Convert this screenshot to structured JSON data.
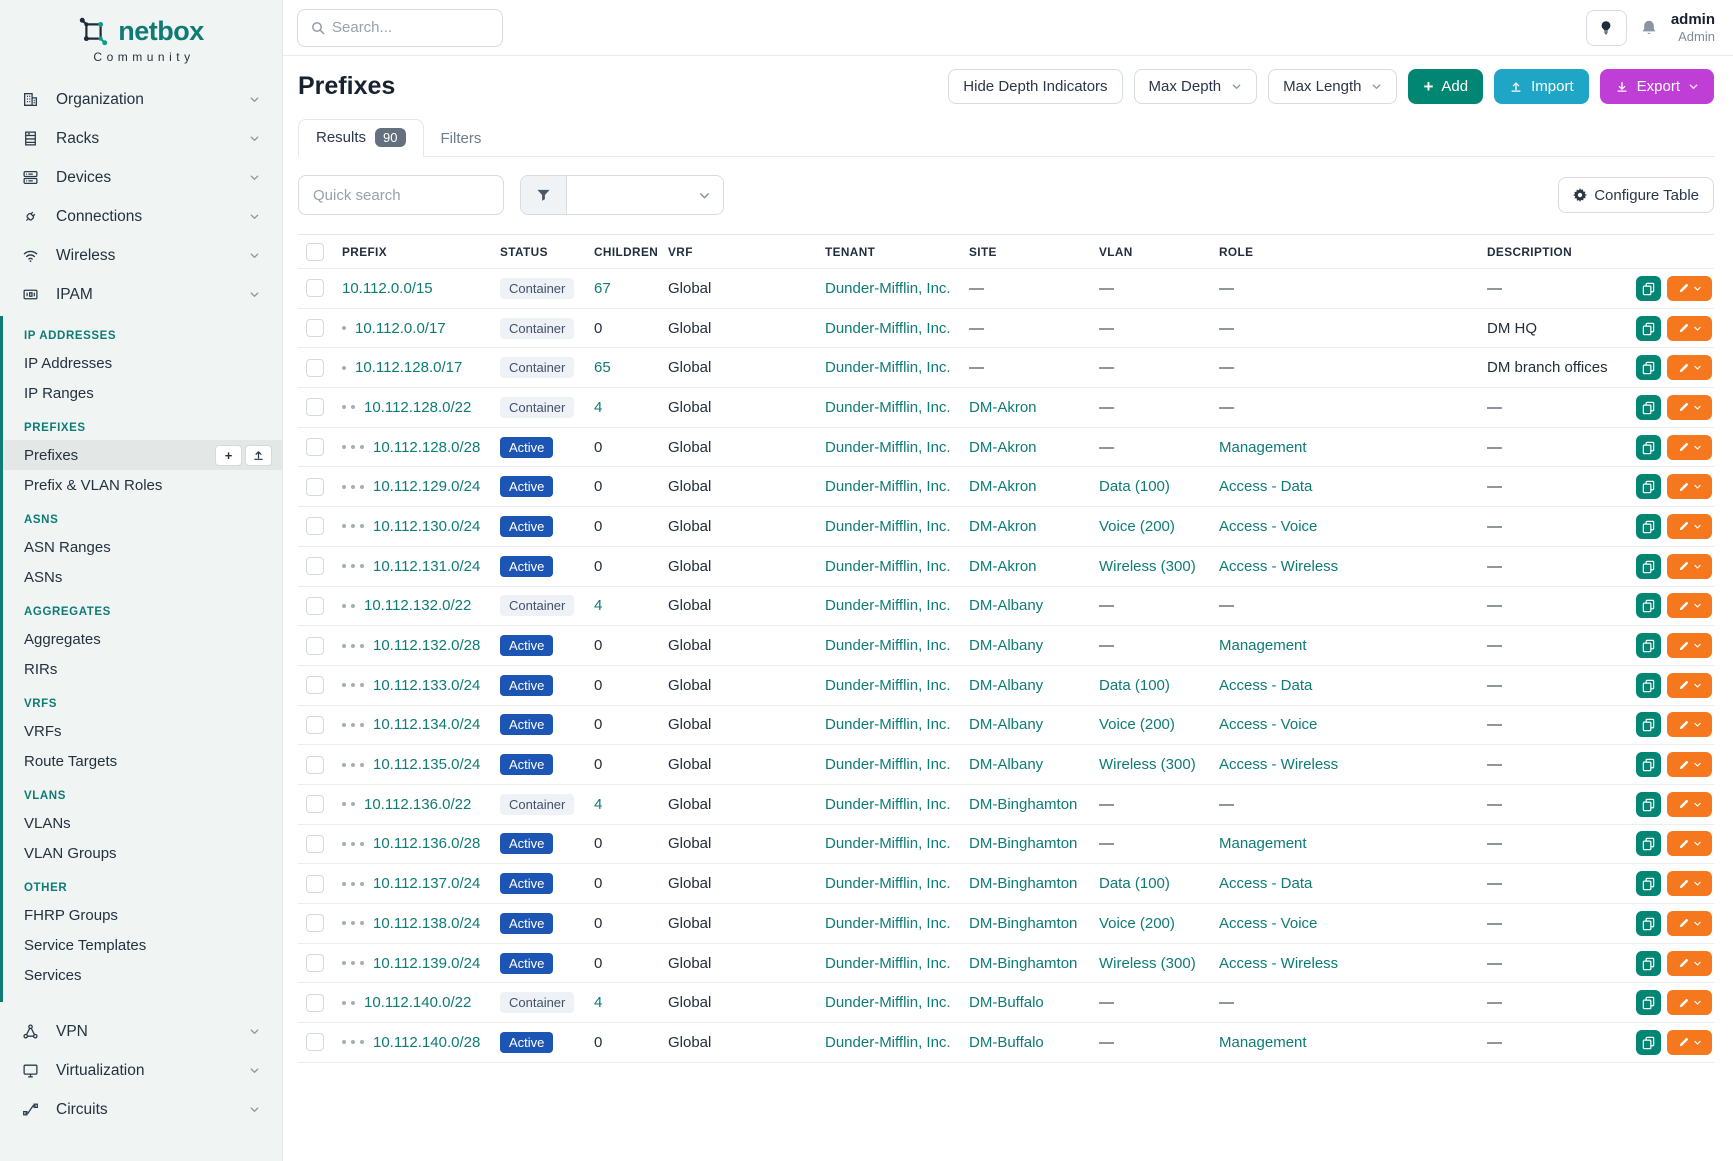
{
  "sidebar": {
    "brand": "netbox",
    "brand_sub": "Community",
    "top": [
      {
        "label": "Organization",
        "icon": "building-icon"
      },
      {
        "label": "Racks",
        "icon": "rack-icon"
      },
      {
        "label": "Devices",
        "icon": "server-icon"
      },
      {
        "label": "Connections",
        "icon": "plug-icon"
      },
      {
        "label": "Wireless",
        "icon": "wifi-icon"
      },
      {
        "label": "IPAM",
        "icon": "ipam-icon"
      }
    ],
    "sections": [
      {
        "header": "IP ADDRESSES",
        "items": [
          "IP Addresses",
          "IP Ranges"
        ]
      },
      {
        "header": "PREFIXES",
        "items": [
          "Prefixes",
          "Prefix & VLAN Roles"
        ]
      },
      {
        "header": "ASNS",
        "items": [
          "ASN Ranges",
          "ASNs"
        ]
      },
      {
        "header": "AGGREGATES",
        "items": [
          "Aggregates",
          "RIRs"
        ]
      },
      {
        "header": "VRFS",
        "items": [
          "VRFs",
          "Route Targets"
        ]
      },
      {
        "header": "VLANS",
        "items": [
          "VLANs",
          "VLAN Groups"
        ]
      },
      {
        "header": "OTHER",
        "items": [
          "FHRP Groups",
          "Service Templates",
          "Services"
        ]
      }
    ],
    "active_item": "Prefixes",
    "bottom": [
      {
        "label": "VPN",
        "icon": "vpn-icon"
      },
      {
        "label": "Virtualization",
        "icon": "monitor-icon"
      },
      {
        "label": "Circuits",
        "icon": "circuit-icon"
      }
    ]
  },
  "topbar": {
    "search_placeholder": "Search...",
    "user_name": "admin",
    "user_role": "Admin"
  },
  "page": {
    "title": "Prefixes",
    "toolbar": {
      "hide_depth": "Hide Depth Indicators",
      "max_depth": "Max Depth",
      "max_length": "Max Length",
      "add": "Add",
      "import": "Import",
      "export": "Export"
    },
    "tabs": {
      "results": "Results",
      "results_count": "90",
      "filters": "Filters"
    },
    "quick_search_placeholder": "Quick search",
    "configure_table": "Configure Table"
  },
  "icons": {
    "plus": "+"
  },
  "colors": {
    "accent_teal": "#0e7b74",
    "active_badge_blue": "#1d55b4",
    "add_green": "#008672",
    "import_cyan": "#1fa6c7",
    "export_purple": "#bf3ed6",
    "edit_orange": "#f5781e"
  },
  "table": {
    "columns": [
      "PREFIX",
      "STATUS",
      "CHILDREN",
      "VRF",
      "TENANT",
      "SITE",
      "VLAN",
      "ROLE",
      "DESCRIPTION"
    ],
    "rows": [
      {
        "depth": 0,
        "prefix": "10.112.0.0/15",
        "status": "Container",
        "children": "67",
        "vrf": "Global",
        "tenant": "Dunder-Mifflin, Inc.",
        "site": "—",
        "vlan": "—",
        "role": "—",
        "description": "—"
      },
      {
        "depth": 1,
        "prefix": "10.112.0.0/17",
        "status": "Container",
        "children": "0",
        "vrf": "Global",
        "tenant": "Dunder-Mifflin, Inc.",
        "site": "—",
        "vlan": "—",
        "role": "—",
        "description": "DM HQ"
      },
      {
        "depth": 1,
        "prefix": "10.112.128.0/17",
        "status": "Container",
        "children": "65",
        "vrf": "Global",
        "tenant": "Dunder-Mifflin, Inc.",
        "site": "—",
        "vlan": "—",
        "role": "—",
        "description": "DM branch offices"
      },
      {
        "depth": 2,
        "prefix": "10.112.128.0/22",
        "status": "Container",
        "children": "4",
        "vrf": "Global",
        "tenant": "Dunder-Mifflin, Inc.",
        "site": "DM-Akron",
        "vlan": "—",
        "role": "—",
        "description": "—"
      },
      {
        "depth": 3,
        "prefix": "10.112.128.0/28",
        "status": "Active",
        "children": "0",
        "vrf": "Global",
        "tenant": "Dunder-Mifflin, Inc.",
        "site": "DM-Akron",
        "vlan": "—",
        "role": "Management",
        "description": "—"
      },
      {
        "depth": 3,
        "prefix": "10.112.129.0/24",
        "status": "Active",
        "children": "0",
        "vrf": "Global",
        "tenant": "Dunder-Mifflin, Inc.",
        "site": "DM-Akron",
        "vlan": "Data (100)",
        "role": "Access - Data",
        "description": "—"
      },
      {
        "depth": 3,
        "prefix": "10.112.130.0/24",
        "status": "Active",
        "children": "0",
        "vrf": "Global",
        "tenant": "Dunder-Mifflin, Inc.",
        "site": "DM-Akron",
        "vlan": "Voice (200)",
        "role": "Access - Voice",
        "description": "—"
      },
      {
        "depth": 3,
        "prefix": "10.112.131.0/24",
        "status": "Active",
        "children": "0",
        "vrf": "Global",
        "tenant": "Dunder-Mifflin, Inc.",
        "site": "DM-Akron",
        "vlan": "Wireless (300)",
        "role": "Access - Wireless",
        "description": "—"
      },
      {
        "depth": 2,
        "prefix": "10.112.132.0/22",
        "status": "Container",
        "children": "4",
        "vrf": "Global",
        "tenant": "Dunder-Mifflin, Inc.",
        "site": "DM-Albany",
        "vlan": "—",
        "role": "—",
        "description": "—"
      },
      {
        "depth": 3,
        "prefix": "10.112.132.0/28",
        "status": "Active",
        "children": "0",
        "vrf": "Global",
        "tenant": "Dunder-Mifflin, Inc.",
        "site": "DM-Albany",
        "vlan": "—",
        "role": "Management",
        "description": "—"
      },
      {
        "depth": 3,
        "prefix": "10.112.133.0/24",
        "status": "Active",
        "children": "0",
        "vrf": "Global",
        "tenant": "Dunder-Mifflin, Inc.",
        "site": "DM-Albany",
        "vlan": "Data (100)",
        "role": "Access - Data",
        "description": "—"
      },
      {
        "depth": 3,
        "prefix": "10.112.134.0/24",
        "status": "Active",
        "children": "0",
        "vrf": "Global",
        "tenant": "Dunder-Mifflin, Inc.",
        "site": "DM-Albany",
        "vlan": "Voice (200)",
        "role": "Access - Voice",
        "description": "—"
      },
      {
        "depth": 3,
        "prefix": "10.112.135.0/24",
        "status": "Active",
        "children": "0",
        "vrf": "Global",
        "tenant": "Dunder-Mifflin, Inc.",
        "site": "DM-Albany",
        "vlan": "Wireless (300)",
        "role": "Access - Wireless",
        "description": "—"
      },
      {
        "depth": 2,
        "prefix": "10.112.136.0/22",
        "status": "Container",
        "children": "4",
        "vrf": "Global",
        "tenant": "Dunder-Mifflin, Inc.",
        "site": "DM-Binghamton",
        "vlan": "—",
        "role": "—",
        "description": "—"
      },
      {
        "depth": 3,
        "prefix": "10.112.136.0/28",
        "status": "Active",
        "children": "0",
        "vrf": "Global",
        "tenant": "Dunder-Mifflin, Inc.",
        "site": "DM-Binghamton",
        "vlan": "—",
        "role": "Management",
        "description": "—"
      },
      {
        "depth": 3,
        "prefix": "10.112.137.0/24",
        "status": "Active",
        "children": "0",
        "vrf": "Global",
        "tenant": "Dunder-Mifflin, Inc.",
        "site": "DM-Binghamton",
        "vlan": "Data (100)",
        "role": "Access - Data",
        "description": "—"
      },
      {
        "depth": 3,
        "prefix": "10.112.138.0/24",
        "status": "Active",
        "children": "0",
        "vrf": "Global",
        "tenant": "Dunder-Mifflin, Inc.",
        "site": "DM-Binghamton",
        "vlan": "Voice (200)",
        "role": "Access - Voice",
        "description": "—"
      },
      {
        "depth": 3,
        "prefix": "10.112.139.0/24",
        "status": "Active",
        "children": "0",
        "vrf": "Global",
        "tenant": "Dunder-Mifflin, Inc.",
        "site": "DM-Binghamton",
        "vlan": "Wireless (300)",
        "role": "Access - Wireless",
        "description": "—"
      },
      {
        "depth": 2,
        "prefix": "10.112.140.0/22",
        "status": "Container",
        "children": "4",
        "vrf": "Global",
        "tenant": "Dunder-Mifflin, Inc.",
        "site": "DM-Buffalo",
        "vlan": "—",
        "role": "—",
        "description": "—"
      },
      {
        "depth": 3,
        "prefix": "10.112.140.0/28",
        "status": "Active",
        "children": "0",
        "vrf": "Global",
        "tenant": "Dunder-Mifflin, Inc.",
        "site": "DM-Buffalo",
        "vlan": "—",
        "role": "Management",
        "description": "—"
      }
    ]
  }
}
